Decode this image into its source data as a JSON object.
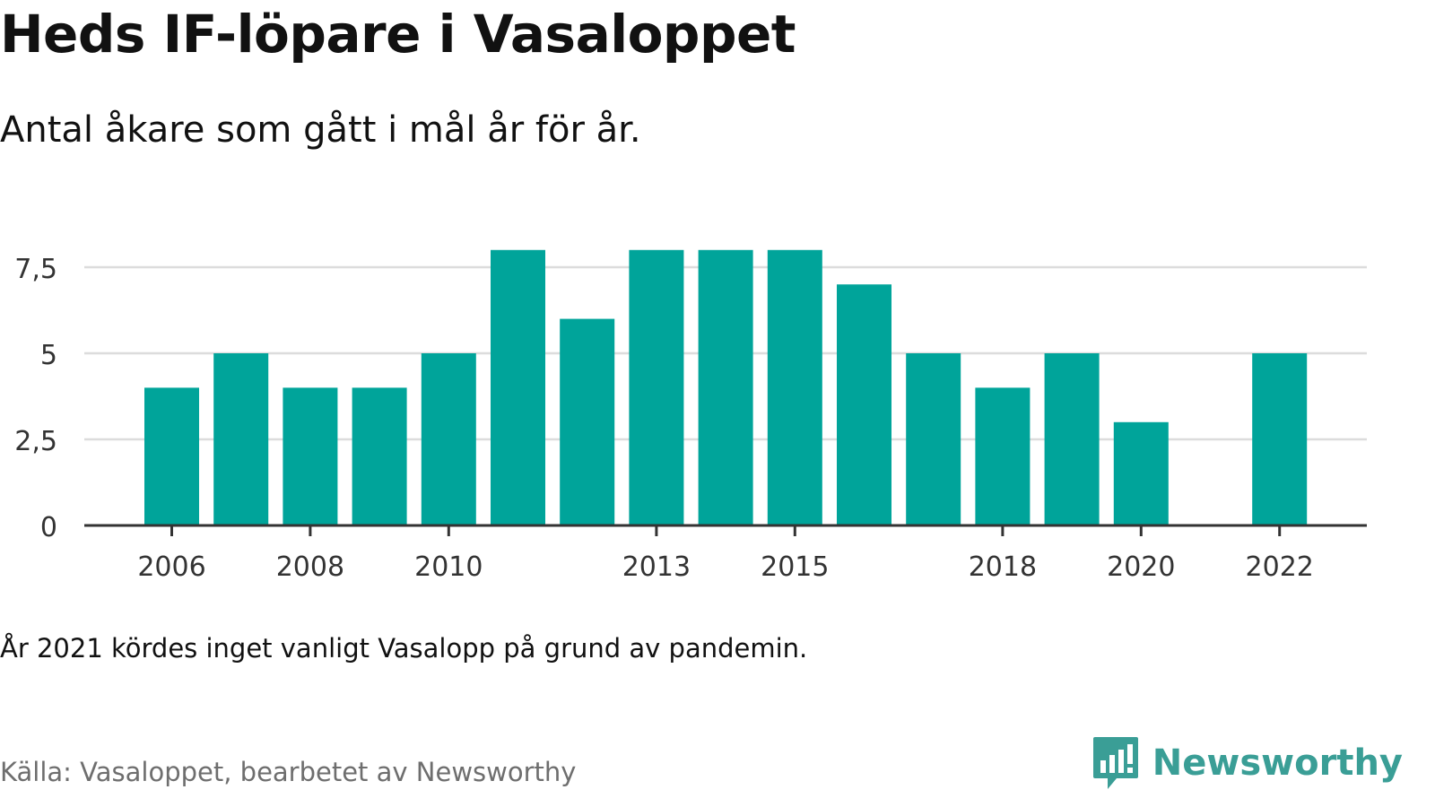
{
  "title": "Heds IF-löpare i Vasaloppet",
  "subtitle": "Antal åkare som gått i mål år för år.",
  "note": "År 2021 kördes inget vanligt Vasalopp på grund av pandemin.",
  "source": "Källa: Vasaloppet, bearbetet av Newsworthy",
  "brand": {
    "name": "Newsworthy",
    "color": "#3a9e96",
    "icon": "newsworthy-logo-icon"
  },
  "chart_data": {
    "type": "bar",
    "title": "Heds IF-löpare i Vasaloppet",
    "subtitle": "Antal åkare som gått i mål år för år.",
    "categories": [
      2006,
      2007,
      2008,
      2009,
      2010,
      2011,
      2012,
      2013,
      2014,
      2015,
      2016,
      2017,
      2018,
      2019,
      2020,
      2021,
      2022
    ],
    "values": [
      4,
      5,
      4,
      4,
      5,
      8,
      6,
      8,
      8,
      8,
      7,
      5,
      4,
      5,
      3,
      null,
      5
    ],
    "x_tick_labels": [
      "2006",
      "2008",
      "2010",
      "2013",
      "2015",
      "2018",
      "2020",
      "2022"
    ],
    "y_ticks": [
      0,
      2.5,
      5,
      7.5
    ],
    "y_tick_labels": [
      "0",
      "2,5",
      "5",
      "7,5"
    ],
    "ylim": [
      0,
      8
    ],
    "xlabel": "",
    "ylabel": "",
    "grid": true,
    "legend": "none",
    "bar_color": "#00a49a",
    "grid_color": "#dcdcdc",
    "axis_color": "#333333"
  }
}
